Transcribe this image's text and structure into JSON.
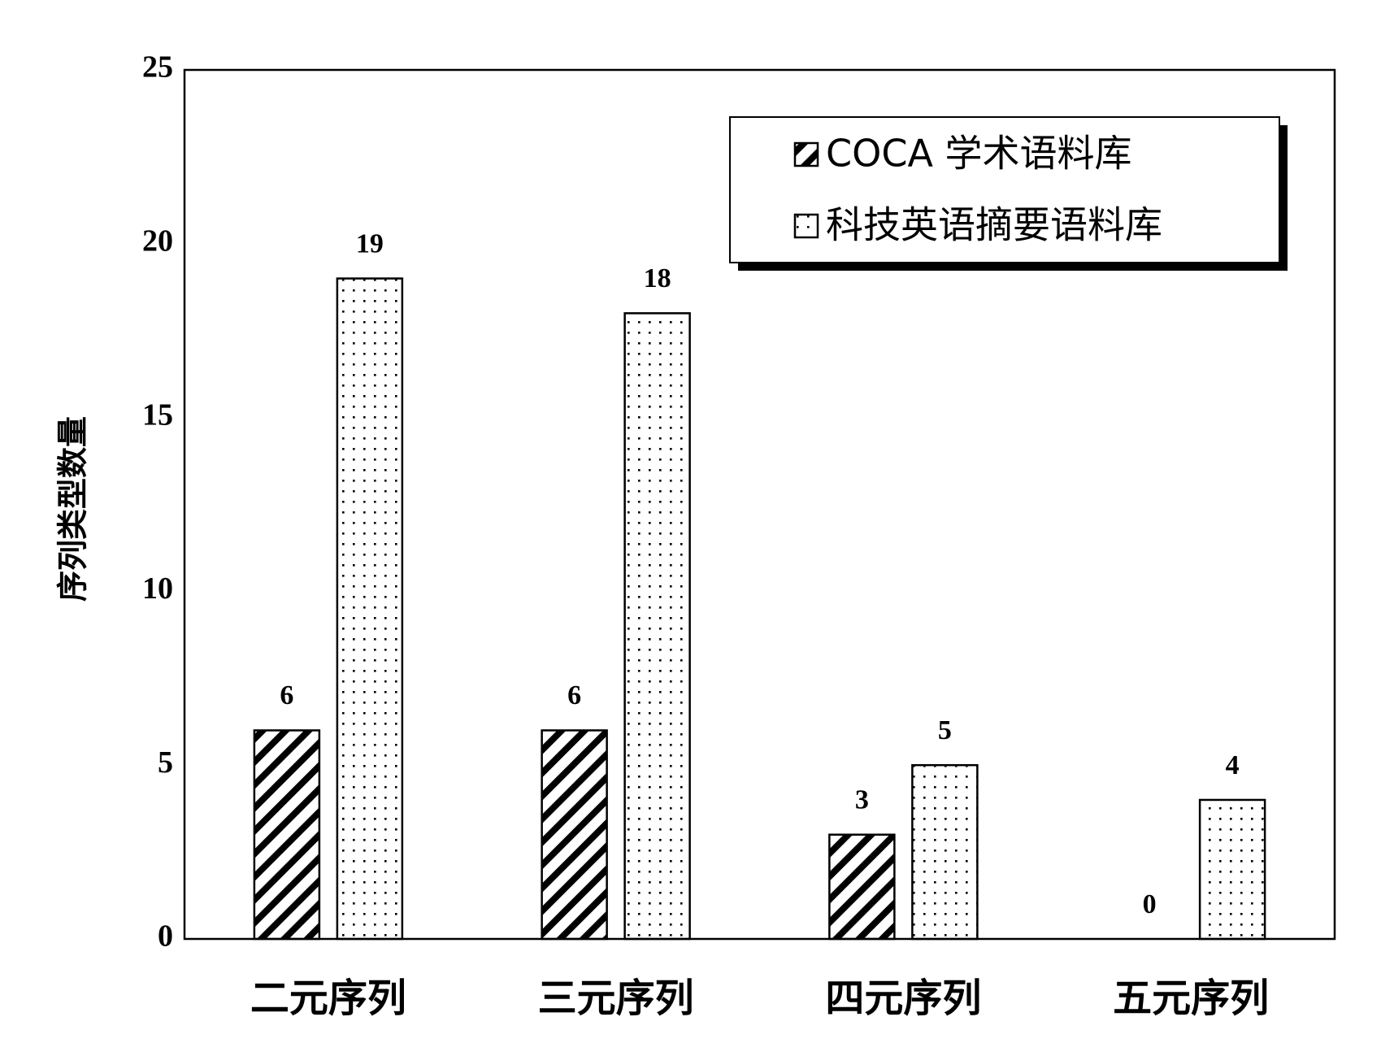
{
  "chart_data": {
    "type": "bar",
    "y_label": "序列类型数量",
    "categories": [
      "二元序列",
      "三元序列",
      "四元序列",
      "五元序列"
    ],
    "series": [
      {
        "name": "COCA 学术语料库",
        "color": "#000000",
        "pattern": "hatch",
        "values": [
          6,
          6,
          3,
          0
        ]
      },
      {
        "name": "科技英语摘要语料库",
        "color": "#000000",
        "pattern": "dots",
        "values": [
          19,
          18,
          5,
          4
        ]
      }
    ],
    "ylim": [
      0,
      25
    ],
    "yticks": [
      0,
      5,
      10,
      15,
      20,
      25
    ],
    "grid": false,
    "legend": "upper right"
  }
}
